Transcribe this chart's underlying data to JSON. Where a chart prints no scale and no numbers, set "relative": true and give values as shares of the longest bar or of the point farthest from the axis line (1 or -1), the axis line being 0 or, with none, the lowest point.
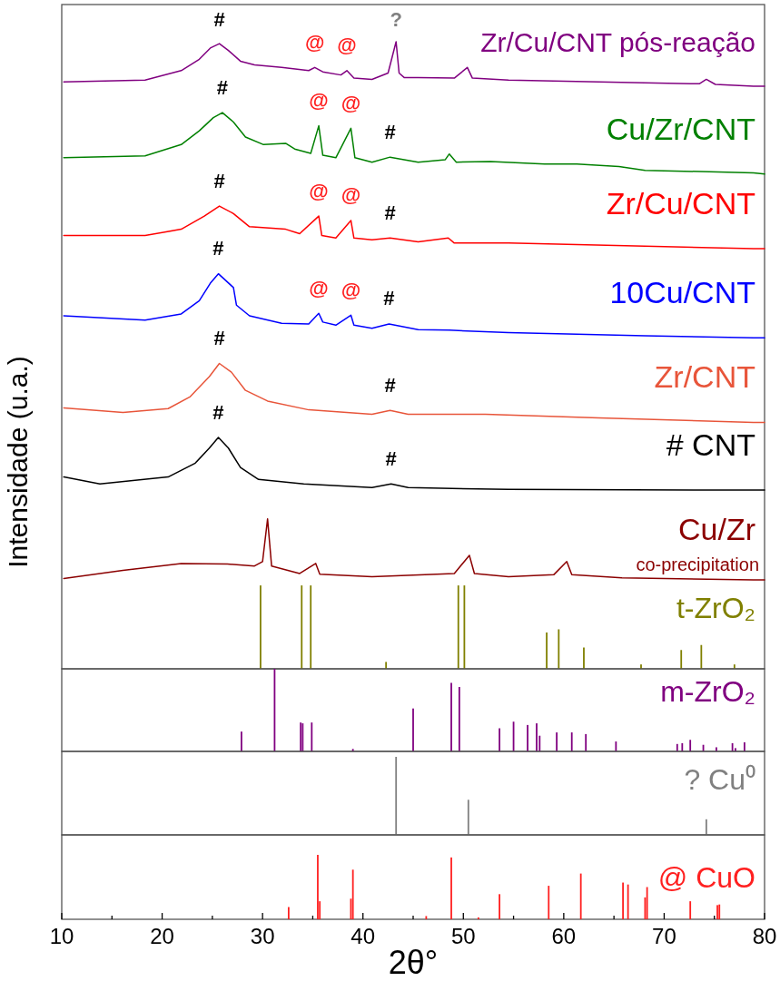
{
  "chart_data": [
    {
      "type": "line",
      "relative": true,
      "xlim": [
        10,
        80
      ],
      "tick_labels": false,
      "ylabel": "Intensidade (u.a.)",
      "annotations": [
        {
          "text": "#",
          "x": 25.7,
          "y": 0.997
        },
        {
          "text": "@",
          "x": 35.2,
          "y": 0.959
        },
        {
          "text": "@",
          "x": 38.4,
          "y": 0.954
        },
        {
          "text": "?",
          "x": 43.3,
          "y": 1.0
        },
        {
          "text": "#",
          "x": 26.0,
          "y": 0.887
        },
        {
          "text": "@",
          "x": 35.6,
          "y": 0.866
        },
        {
          "text": "@",
          "x": 38.8,
          "y": 0.862
        },
        {
          "text": "#",
          "x": 42.7,
          "y": 0.816
        },
        {
          "text": "#",
          "x": 25.7,
          "y": 0.738
        },
        {
          "text": "@",
          "x": 35.6,
          "y": 0.722
        },
        {
          "text": "@",
          "x": 38.8,
          "y": 0.715
        },
        {
          "text": "#",
          "x": 42.7,
          "y": 0.687
        },
        {
          "text": "#",
          "x": 25.6,
          "y": 0.63
        },
        {
          "text": "@",
          "x": 35.6,
          "y": 0.567
        },
        {
          "text": "@",
          "x": 38.8,
          "y": 0.564
        },
        {
          "text": "#",
          "x": 42.6,
          "y": 0.55
        },
        {
          "text": "#",
          "x": 25.7,
          "y": 0.487
        },
        {
          "text": "#",
          "x": 42.7,
          "y": 0.412
        },
        {
          "text": "#",
          "x": 25.6,
          "y": 0.369
        },
        {
          "text": "#",
          "x": 42.8,
          "y": 0.295
        }
      ],
      "series": [
        {
          "name": "Zr/Cu/CNT pós-reação",
          "color": "#800080",
          "x": [
            10.2,
            18.3,
            21.9,
            23.7,
            24.8,
            25.7,
            26.6,
            27.8,
            29.2,
            31.9,
            34.6,
            35.2,
            36.0,
            37.8,
            38.4,
            39.1,
            40.9,
            42.5,
            43.3,
            43.6,
            44.1,
            45.5,
            49.1,
            50.4,
            50.9,
            54.5,
            63.5,
            72.6,
            73.5,
            74.2,
            75.1,
            78.9,
            80
          ],
          "values": [
            0.936,
            0.939,
            0.954,
            0.972,
            0.99,
            0.997,
            0.986,
            0.969,
            0.963,
            0.959,
            0.954,
            0.959,
            0.952,
            0.947,
            0.954,
            0.942,
            0.94,
            0.95,
            1.0,
            0.95,
            0.943,
            0.943,
            0.942,
            0.959,
            0.942,
            0.939,
            0.936,
            0.933,
            0.933,
            0.94,
            0.932,
            0.929,
            0.929
          ]
        },
        {
          "name": "Cu/Zr/CNT",
          "color": "#008000",
          "x": [
            10.2,
            18.3,
            21.9,
            23.7,
            25.1,
            26.0,
            27.1,
            28.3,
            30.1,
            32.3,
            33.2,
            34.8,
            35.6,
            36.0,
            37.3,
            38.8,
            39.2,
            40.9,
            42.7,
            45.5,
            48.2,
            48.6,
            49.3,
            52.7,
            58.1,
            61.3,
            65.5,
            68.1,
            78.9,
            80
          ],
          "values": [
            0.815,
            0.818,
            0.836,
            0.858,
            0.879,
            0.887,
            0.872,
            0.848,
            0.836,
            0.838,
            0.829,
            0.822,
            0.866,
            0.819,
            0.815,
            0.862,
            0.815,
            0.808,
            0.816,
            0.808,
            0.812,
            0.821,
            0.808,
            0.809,
            0.805,
            0.805,
            0.801,
            0.795,
            0.791,
            0.789
          ]
        },
        {
          "name": "Zr/Cu/CNT",
          "color": "#ff0000",
          "x": [
            10.2,
            18.3,
            21.9,
            24.2,
            25.7,
            27.1,
            28.7,
            32.3,
            33.7,
            35.6,
            35.9,
            37.3,
            38.8,
            39.1,
            40.9,
            42.7,
            45.5,
            48.5,
            49.1,
            54.5,
            78.9,
            80
          ],
          "values": [
            0.691,
            0.691,
            0.701,
            0.722,
            0.738,
            0.726,
            0.705,
            0.701,
            0.694,
            0.722,
            0.691,
            0.687,
            0.715,
            0.687,
            0.684,
            0.687,
            0.681,
            0.687,
            0.679,
            0.679,
            0.67,
            0.67
          ]
        },
        {
          "name": "10Cu/CNT",
          "color": "#0000ff",
          "x": [
            10.2,
            18.3,
            21.9,
            23.7,
            24.8,
            25.6,
            27.1,
            27.4,
            28.7,
            31.9,
            34.6,
            35.6,
            36.0,
            37.3,
            38.8,
            39.1,
            40.9,
            42.6,
            45.5,
            48.6,
            54.5,
            68.1,
            78.9,
            80
          ],
          "values": [
            0.563,
            0.556,
            0.566,
            0.587,
            0.615,
            0.63,
            0.608,
            0.58,
            0.563,
            0.551,
            0.55,
            0.567,
            0.553,
            0.548,
            0.564,
            0.548,
            0.543,
            0.55,
            0.541,
            0.54,
            0.536,
            0.531,
            0.528,
            0.528
          ]
        },
        {
          "name": "Zr/CNT",
          "color": "#e8553a",
          "x": [
            10.2,
            16.1,
            20.6,
            22.8,
            24.7,
            25.7,
            26.9,
            28.3,
            30.5,
            34.6,
            40.9,
            42.7,
            44.5,
            52.2,
            63.5,
            78.9,
            80
          ],
          "values": [
            0.416,
            0.409,
            0.415,
            0.434,
            0.466,
            0.487,
            0.473,
            0.444,
            0.427,
            0.413,
            0.406,
            0.412,
            0.406,
            0.406,
            0.4,
            0.393,
            0.393
          ]
        },
        {
          "name": "# CNT",
          "color": "#000000",
          "x": [
            10.2,
            13.8,
            20.6,
            23.3,
            24.7,
            25.6,
            26.6,
            27.8,
            29.6,
            34.1,
            40.9,
            42.8,
            44.5,
            54.5,
            78.9,
            80
          ],
          "values": [
            0.306,
            0.295,
            0.306,
            0.328,
            0.352,
            0.369,
            0.352,
            0.321,
            0.302,
            0.295,
            0.289,
            0.295,
            0.289,
            0.286,
            0.285,
            0.285
          ]
        },
        {
          "name": "Cu/Zr co-precipitation",
          "color": "#8b0000",
          "x": [
            10.2,
            16.1,
            21.9,
            26.5,
            29.2,
            30.0,
            30.5,
            30.9,
            33.7,
            35.3,
            35.7,
            40.9,
            49.1,
            50.6,
            51.1,
            54.5,
            59.0,
            60.3,
            60.8,
            65.8,
            78.9,
            80
          ],
          "values": [
            0.144,
            0.157,
            0.168,
            0.167,
            0.164,
            0.171,
            0.239,
            0.164,
            0.152,
            0.168,
            0.151,
            0.147,
            0.152,
            0.181,
            0.152,
            0.147,
            0.15,
            0.171,
            0.15,
            0.145,
            0.142,
            0.142
          ]
        },
        {
          "name": "t-ZrO₂",
          "type": "bar",
          "color": "#808000",
          "x": [
            29.8,
            33.9,
            34.8,
            42.3,
            49.5,
            50.1,
            58.3,
            59.5,
            62.0,
            67.7,
            71.7,
            73.7,
            77.0
          ],
          "values": [
            0.133,
            0.133,
            0.133,
            0.011,
            0.133,
            0.133,
            0.058,
            0.063,
            0.034,
            0.007,
            0.03,
            0.038,
            0.007
          ]
        }
      ]
    },
    {
      "type": "bar",
      "relative": true,
      "xlim": [
        10,
        80
      ],
      "tick_labels": false,
      "series": [
        {
          "name": "m-ZrO₂",
          "color": "#800080",
          "x": [
            27.9,
            31.2,
            33.8,
            34.0,
            34.9,
            39.0,
            45.0,
            48.8,
            49.6,
            53.6,
            55.0,
            56.4,
            57.3,
            57.6,
            59.3,
            60.8,
            62.2,
            65.2,
            71.3,
            71.8,
            72.6,
            73.9,
            75.2,
            76.8,
            77.1,
            78.0
          ],
          "values": [
            0.24,
            1,
            0.35,
            0.34,
            0.35,
            0.03,
            0.52,
            0.83,
            0.78,
            0.28,
            0.36,
            0.32,
            0.34,
            0.19,
            0.23,
            0.23,
            0.21,
            0.12,
            0.09,
            0.1,
            0.14,
            0.08,
            0.05,
            0.1,
            0.04,
            0.11
          ]
        }
      ]
    },
    {
      "type": "bar",
      "relative": true,
      "xlim": [
        10,
        80
      ],
      "tick_labels": false,
      "series": [
        {
          "name": "? Cu⁰",
          "color": "#808080",
          "x": [
            43.3,
            50.5,
            74.2
          ],
          "values": [
            1,
            0.45,
            0.2
          ]
        }
      ]
    },
    {
      "type": "bar",
      "relative": true,
      "xlim": [
        10,
        80
      ],
      "tick_labels": "x",
      "xlabel": "2θ°",
      "xticks": [
        10,
        {
          "value": 15,
          "label": null
        },
        20,
        {
          "value": 25,
          "label": null
        },
        30,
        {
          "value": 35,
          "label": null
        },
        40,
        {
          "value": 45,
          "label": null
        },
        50,
        {
          "value": 55,
          "label": null
        },
        60,
        {
          "value": 65,
          "label": null
        },
        70,
        {
          "value": 75,
          "label": null
        },
        80
      ],
      "series": [
        {
          "name": "@ CuO",
          "color": "#ff2020",
          "x": [
            32.6,
            35.5,
            35.7,
            38.8,
            39.0,
            46.3,
            48.8,
            51.5,
            53.6,
            58.5,
            61.7,
            65.9,
            66.4,
            68.1,
            68.3,
            72.6,
            75.3,
            75.5
          ],
          "values": [
            0.19,
            1,
            0.28,
            0.32,
            0.77,
            0.05,
            0.96,
            0.03,
            0.39,
            0.52,
            0.71,
            0.57,
            0.54,
            0.34,
            0.5,
            0.28,
            0.22,
            0.23
          ]
        }
      ]
    }
  ]
}
